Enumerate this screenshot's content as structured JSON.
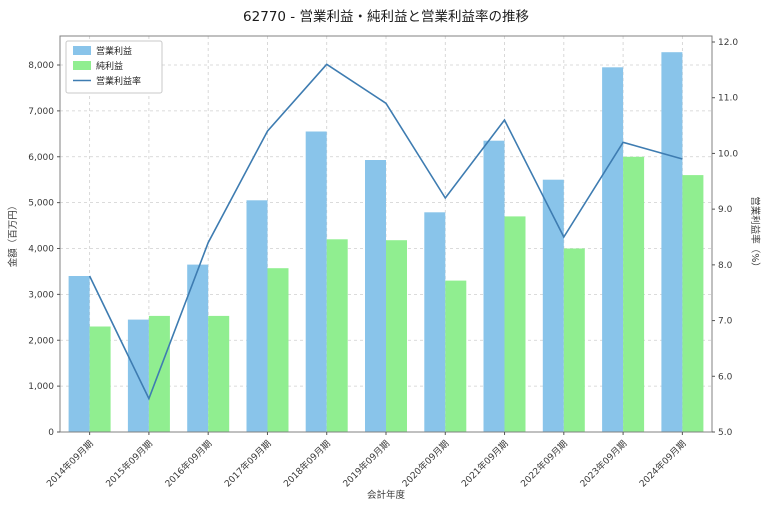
{
  "chart_data": {
    "type": "combo",
    "title": "62770 - 営業利益・純利益と営業利益率の推移",
    "xlabel": "会計年度",
    "ylabel_left": "金額（百万円）",
    "ylabel_right": "営業利益率（%）",
    "categories": [
      "2014年09月期",
      "2015年09月期",
      "2016年09月期",
      "2017年09月期",
      "2018年09月期",
      "2019年09月期",
      "2020年09月期",
      "2021年09月期",
      "2022年09月期",
      "2023年09月期",
      "2024年09月期"
    ],
    "series": [
      {
        "name": "営業利益",
        "type": "bar",
        "axis": "left",
        "color": "#89C4EA",
        "values": [
          3400,
          2450,
          3650,
          5050,
          6550,
          5930,
          4790,
          6350,
          5500,
          7950,
          8280
        ]
      },
      {
        "name": "純利益",
        "type": "bar",
        "axis": "left",
        "color": "#90EE90",
        "values": [
          2300,
          2530,
          2530,
          3570,
          4200,
          4180,
          3300,
          4700,
          4000,
          6000,
          5600
        ]
      },
      {
        "name": "営業利益率",
        "type": "line",
        "axis": "right",
        "color": "#3E7CB1",
        "values": [
          7.8,
          5.6,
          8.4,
          10.4,
          11.6,
          10.9,
          9.2,
          10.6,
          8.5,
          10.2,
          9.9
        ]
      }
    ],
    "left_axis": {
      "min": 0,
      "max": 8000,
      "ticks": [
        0,
        1000,
        2000,
        3000,
        4000,
        5000,
        6000,
        7000,
        8000
      ],
      "tick_labels": [
        "0",
        "1,000",
        "2,000",
        "3,000",
        "4,000",
        "5,000",
        "6,000",
        "7,000",
        "8,000"
      ]
    },
    "right_axis": {
      "min": 5,
      "max": 12,
      "ticks": [
        5,
        6,
        7,
        8,
        9,
        10,
        11,
        12
      ],
      "tick_labels": [
        "5.0",
        "6.0",
        "7.0",
        "8.0",
        "9.0",
        "10.0",
        "11.0",
        "12.0"
      ]
    },
    "grid": true,
    "grid_style": "dashed",
    "legend_position": "upper-left",
    "colors": {
      "background": "#ffffff",
      "grid": "#cfcfcf",
      "spine": "#808080"
    }
  }
}
